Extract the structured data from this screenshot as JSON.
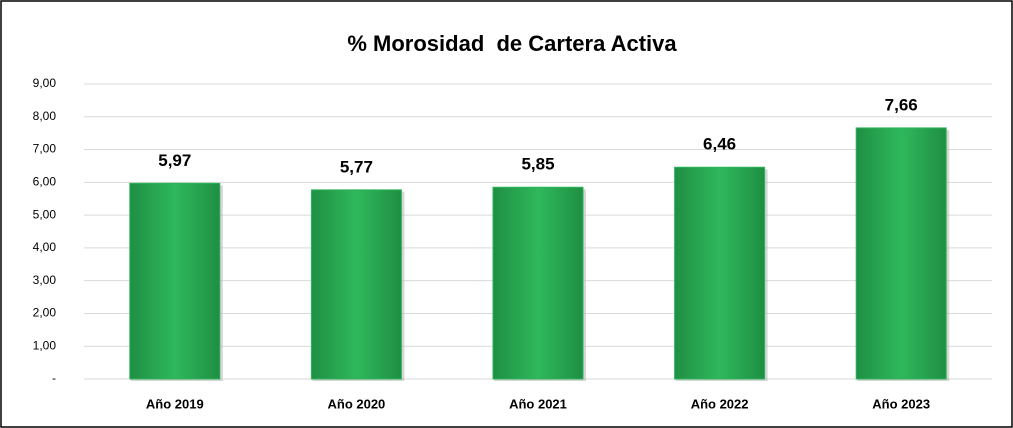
{
  "chart_data": {
    "type": "bar",
    "title": "% Morosidad  de Cartera Activa",
    "categories": [
      "Año 2019",
      "Año 2020",
      "Año 2021",
      "Año 2022",
      "Año 2023"
    ],
    "values": [
      5.97,
      5.77,
      5.85,
      6.46,
      7.66
    ],
    "value_labels": [
      "5,97",
      "5,77",
      "5,85",
      "6,46",
      "7,66"
    ],
    "color": "#2db35a",
    "ylim": [
      0,
      9
    ],
    "yticks": [
      {
        "value": 0,
        "label": "-"
      },
      {
        "value": 1,
        "label": "1,00"
      },
      {
        "value": 2,
        "label": "2,00"
      },
      {
        "value": 3,
        "label": "3,00"
      },
      {
        "value": 4,
        "label": "4,00"
      },
      {
        "value": 5,
        "label": "5,00"
      },
      {
        "value": 6,
        "label": "6,00"
      },
      {
        "value": 7,
        "label": "7,00"
      },
      {
        "value": 8,
        "label": "8,00"
      },
      {
        "value": 9,
        "label": "9,00"
      }
    ],
    "grid": true
  }
}
